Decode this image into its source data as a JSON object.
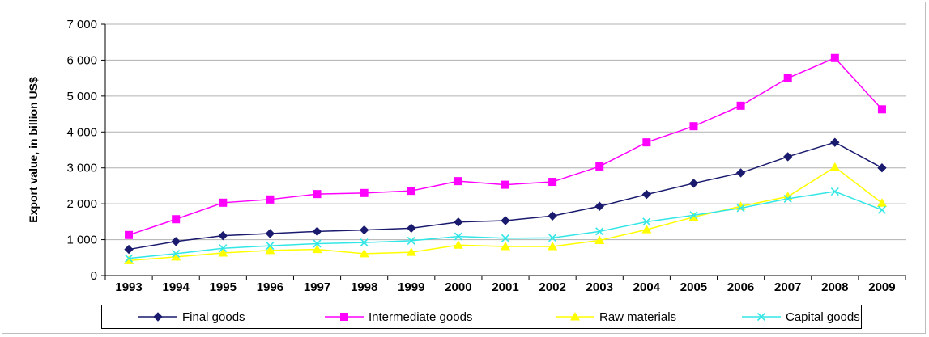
{
  "chart_data": {
    "type": "line",
    "title": "",
    "xlabel": "",
    "ylabel": "Export value, in billion US$",
    "x": [
      "1993",
      "1994",
      "1995",
      "1996",
      "1997",
      "1998",
      "1999",
      "2000",
      "2001",
      "2002",
      "2003",
      "2004",
      "2005",
      "2006",
      "2007",
      "2008",
      "2009"
    ],
    "ylim": [
      0,
      7000
    ],
    "yticks": [
      0,
      1000,
      2000,
      3000,
      4000,
      5000,
      6000,
      7000
    ],
    "ytick_labels": [
      "0",
      "1 000",
      "2 000",
      "3 000",
      "4 000",
      "5 000",
      "6 000",
      "7 000"
    ],
    "grid": true,
    "legend_position": "bottom",
    "series": [
      {
        "name": "Final goods",
        "color": "#1a1a6e",
        "marker": "diamond",
        "values": [
          730,
          950,
          1110,
          1170,
          1230,
          1270,
          1320,
          1490,
          1530,
          1660,
          1930,
          2260,
          2570,
          2860,
          3310,
          3710,
          3000
        ]
      },
      {
        "name": "Intermediate goods",
        "color": "#ff00ff",
        "marker": "square",
        "values": [
          1130,
          1570,
          2030,
          2120,
          2270,
          2300,
          2360,
          2630,
          2530,
          2610,
          3040,
          3710,
          4160,
          4730,
          5500,
          6060,
          4630
        ]
      },
      {
        "name": "Raw materials",
        "color": "#ffff00",
        "marker": "triangle",
        "values": [
          420,
          520,
          630,
          700,
          730,
          610,
          650,
          850,
          810,
          810,
          980,
          1280,
          1630,
          1930,
          2200,
          3020,
          2020
        ]
      },
      {
        "name": "Capital goods",
        "color": "#33e6e6",
        "marker": "x",
        "values": [
          480,
          610,
          760,
          830,
          890,
          920,
          970,
          1090,
          1040,
          1050,
          1230,
          1500,
          1680,
          1880,
          2140,
          2340,
          1830
        ]
      }
    ]
  }
}
